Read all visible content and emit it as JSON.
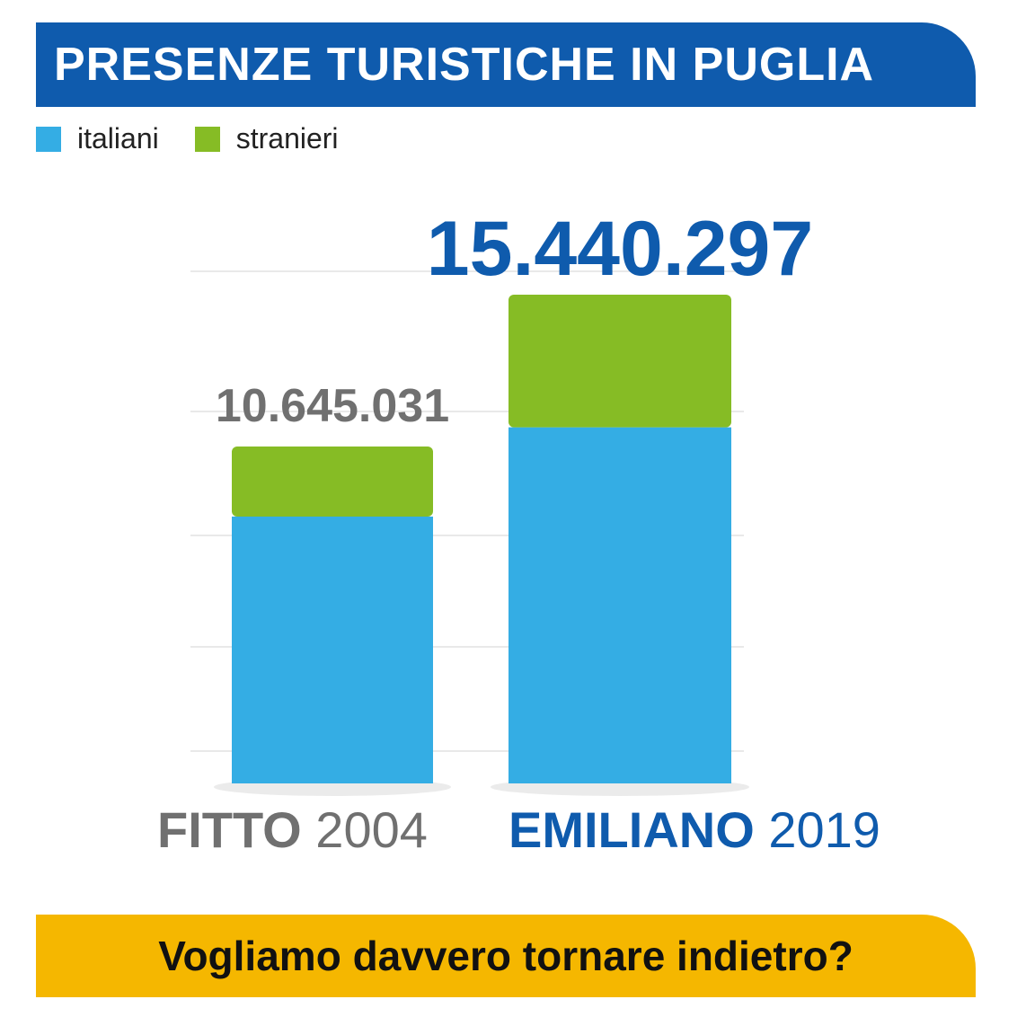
{
  "header": {
    "title": "PRESENZE TURISTICHE IN PUGLIA"
  },
  "legend": [
    {
      "label": "italiani",
      "color": "#34ade4"
    },
    {
      "label": "stranieri",
      "color": "#86bc25"
    }
  ],
  "chart_data": {
    "type": "bar",
    "stacked": true,
    "title": "PRESENZE TURISTICHE IN PUGLIA",
    "categories": [
      {
        "name": "FITTO",
        "year": "2004",
        "total_label": "10.645.031",
        "color": "#707070"
      },
      {
        "name": "EMILIANO",
        "year": "2019",
        "total_label": "15.440.297",
        "color": "#0f5bad"
      }
    ],
    "totals": [
      10645031,
      15440297
    ],
    "series": [
      {
        "name": "italiani",
        "color": "#34ade4",
        "values": [
          8430000,
          11250000
        ]
      },
      {
        "name": "stranieri",
        "color": "#86bc25",
        "values": [
          2215031,
          4190297
        ]
      }
    ],
    "ylim": [
      0,
      15440297
    ],
    "grid": true,
    "legend_position": "top-left"
  },
  "footer": {
    "text": "Vogliamo davvero tornare indietro?"
  }
}
